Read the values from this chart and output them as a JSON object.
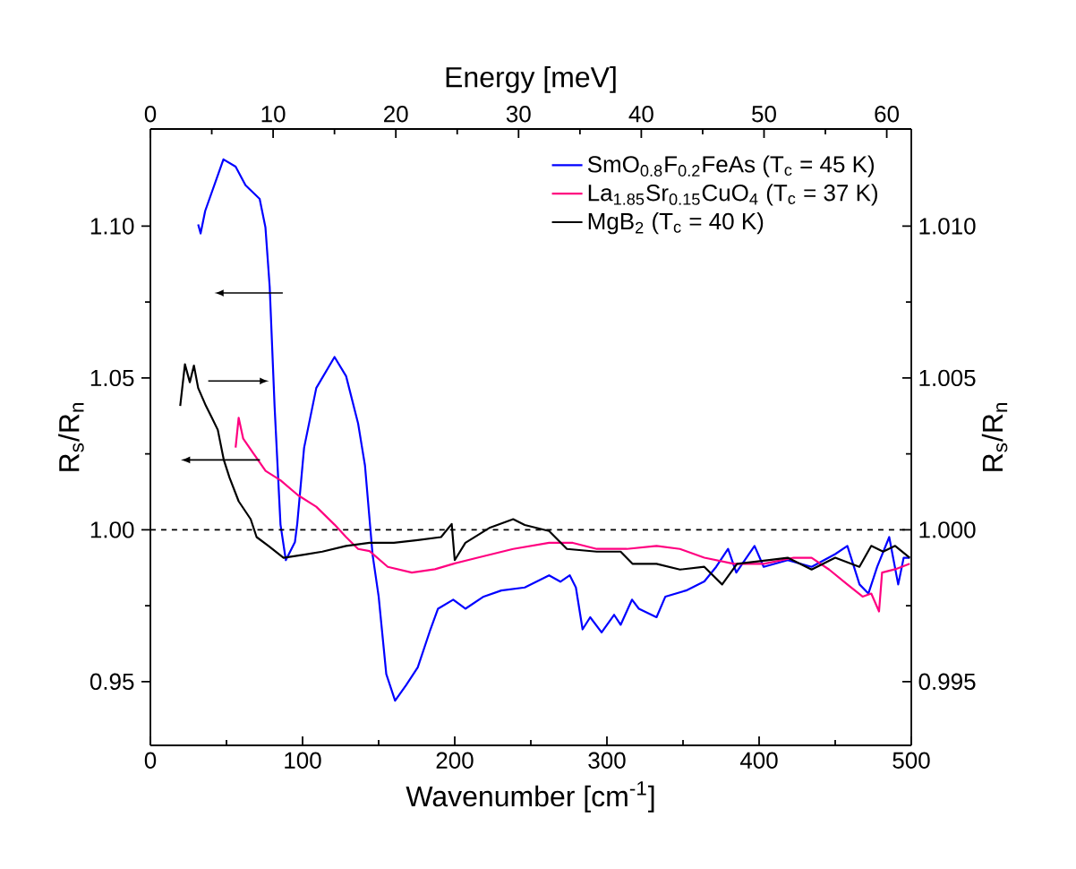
{
  "chart_data": {
    "type": "line",
    "xlabel": "Wavenumber [cm$^{-1}$]",
    "ylabel": "R$_{s}$/R$_{n}$",
    "y2label": "R$_{s}$/R$_{n}$",
    "x2label": "Energy [meV]",
    "xlim": [
      0,
      500
    ],
    "xticks": [
      0,
      100,
      200,
      300,
      400,
      500
    ],
    "x2lim": [
      0,
      62
    ],
    "x2ticks": [
      0,
      10,
      20,
      30,
      40,
      50,
      60
    ],
    "ylim": [
      0.929,
      1.132
    ],
    "yticks": [
      {
        "value": 0.95,
        "label": "0.95"
      },
      {
        "value": 1.0,
        "label": "1.00"
      },
      {
        "value": 1.05,
        "label": "1.05"
      },
      {
        "value": 1.1,
        "label": "1.10"
      }
    ],
    "y2lim": [
      0.9929,
      1.0132
    ],
    "y2ticks": [
      {
        "value": 0.995,
        "label": "0.995"
      },
      {
        "value": 1.0,
        "label": "1.000"
      },
      {
        "value": 1.005,
        "label": "1.005"
      },
      {
        "value": 1.01,
        "label": "1.010"
      }
    ],
    "legend": "top right",
    "grid": false,
    "ref_lines": [
      {
        "axis": "y",
        "value": 1.0,
        "color": "#000000",
        "line_style": "dashed"
      }
    ],
    "series": [
      {
        "name": "SmO$_{0.8}$F$_{0.2}$FeAs (T$_{c}$ = 45 K)",
        "color": "#0000ff",
        "x": [
          31.4,
          33,
          36,
          48,
          56,
          62.5,
          71.8,
          75.6,
          78.4,
          81.6,
          85.5,
          89,
          95,
          96.5,
          101,
          109,
          121,
          128.6,
          136.5,
          141,
          146,
          150,
          155,
          160.8,
          168,
          175.7,
          183.5,
          189,
          199,
          207,
          219,
          230.6,
          246,
          262,
          269.4,
          275.6,
          279.6,
          284,
          289,
          296.5,
          304.7,
          309,
          316.5,
          321,
          332.6,
          338.4,
          352,
          364,
          371.8,
          379.6,
          385,
          397,
          403,
          418.8,
          434.5,
          450,
          458,
          466,
          471.8,
          477.6,
          485.5,
          491.4,
          495,
          499
        ],
        "values": [
          1.1006,
          1.0976,
          1.105,
          1.122,
          1.1196,
          1.1135,
          1.109,
          1.0996,
          1.08,
          1.0408,
          1.0017,
          0.99,
          0.996,
          1.002,
          1.027,
          1.0467,
          1.0569,
          1.0506,
          1.035,
          1.0212,
          0.9918,
          0.978,
          0.9525,
          0.9437,
          0.9488,
          0.9547,
          0.9664,
          0.974,
          0.977,
          0.974,
          0.978,
          0.98,
          0.981,
          0.985,
          0.9829,
          0.985,
          0.981,
          0.9672,
          0.9712,
          0.9662,
          0.972,
          0.9687,
          0.977,
          0.974,
          0.9712,
          0.978,
          0.98,
          0.983,
          0.9878,
          0.9937,
          0.9859,
          0.9947,
          0.9878,
          0.99,
          0.9878,
          0.992,
          0.9947,
          0.982,
          0.979,
          0.9878,
          0.9976,
          0.982,
          0.9908,
          0.9908
        ]
      },
      {
        "name": "La$_{1.85}$Sr$_{0.15}$CuO$_{4}$ (T$_{c}$ = 37 K)",
        "color": "#ff0080",
        "x": [
          56,
          58,
          61,
          67.8,
          75.7,
          85.5,
          97,
          109,
          121,
          128.6,
          136.5,
          144,
          156,
          171.8,
          187,
          199,
          215,
          238.4,
          262,
          277.6,
          293.3,
          313,
          332.6,
          348,
          364,
          383.5,
          403,
          422.7,
          434.5,
          446,
          458,
          468,
          473.7,
          478.8,
          480.8,
          489.4,
          499
        ],
        "values": [
          1.0271,
          1.0369,
          1.03,
          1.0251,
          1.0194,
          1.0163,
          1.0114,
          1.0076,
          1.0017,
          0.9976,
          0.9937,
          0.993,
          0.9878,
          0.9859,
          0.987,
          0.9888,
          0.9908,
          0.9937,
          0.9957,
          0.9957,
          0.9937,
          0.9937,
          0.9947,
          0.9937,
          0.9908,
          0.9888,
          0.9888,
          0.9908,
          0.9908,
          0.9869,
          0.982,
          0.978,
          0.979,
          0.9731,
          0.9859,
          0.987,
          0.9888
        ]
      },
      {
        "name": "MgB$_{2}$ (T$_{c}$ = 40 K)",
        "color": "#000000",
        "axis": "y2",
        "x": [
          19.6,
          22.7,
          25.9,
          28.6,
          31.4,
          36.5,
          40.4,
          44.3,
          48.2,
          52,
          58,
          65.9,
          69.8,
          77.6,
          87.5,
          101,
          113,
          128.6,
          144,
          160,
          175.7,
          191,
          198,
          200,
          207,
          222.7,
          238.4,
          246,
          262,
          273.7,
          293.3,
          309,
          316.8,
          332.6,
          348,
          364,
          375.7,
          385.5,
          403,
          418.8,
          434.5,
          450,
          465.9,
          473.7,
          481.5,
          489.4,
          499
        ],
        "values": [
          1.00408,
          1.00545,
          1.00486,
          1.00541,
          1.00467,
          1.00408,
          1.00369,
          1.00329,
          1.00231,
          1.00172,
          1.00094,
          1.00035,
          0.99976,
          0.99947,
          0.99908,
          0.99918,
          0.99928,
          0.99947,
          0.99957,
          0.99957,
          0.99966,
          0.99976,
          1.00019,
          0.999,
          0.99957,
          1.00006,
          1.00035,
          1.00016,
          0.99996,
          0.99937,
          0.99928,
          0.99928,
          0.99888,
          0.99888,
          0.99869,
          0.99878,
          0.9982,
          0.99888,
          0.99898,
          0.99908,
          0.99869,
          0.99908,
          0.99878,
          0.99947,
          0.99928,
          0.99947,
          0.99908
        ]
      }
    ]
  }
}
